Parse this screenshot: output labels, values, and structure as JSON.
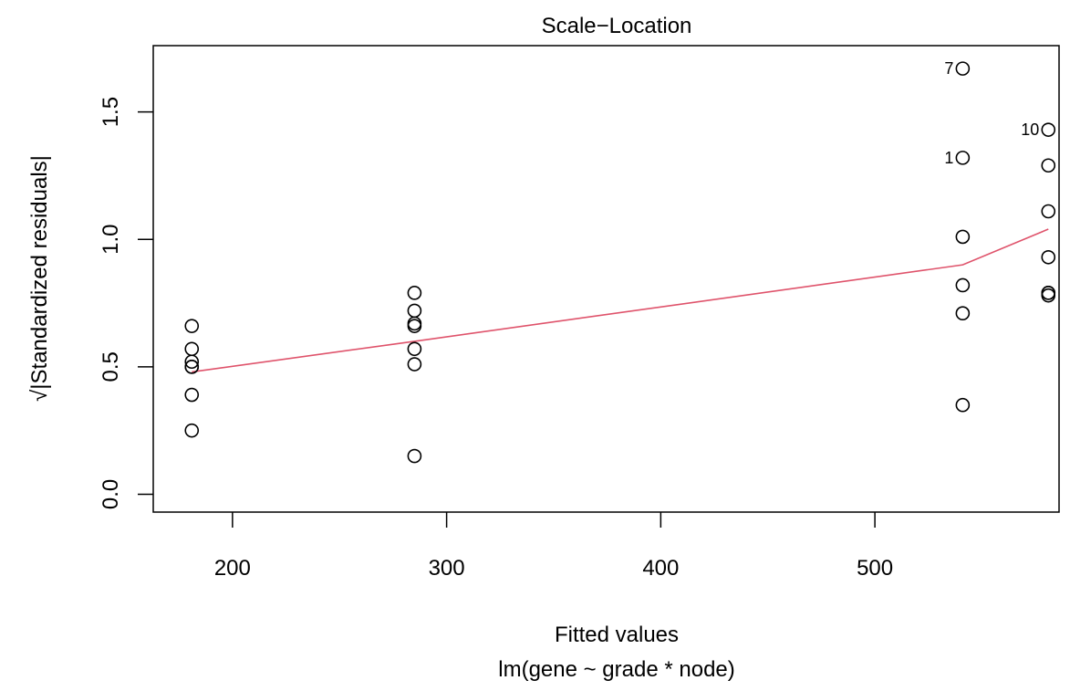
{
  "chart_data": {
    "type": "scatter",
    "title": "Scale−Location",
    "xlabel": "Fitted values",
    "subtitle": "lm(gene ~ grade * node)",
    "ylabel": "√|Standardized residuals|",
    "xlim": [
      163,
      586
    ],
    "ylim": [
      -0.07,
      1.76
    ],
    "x_ticks": [
      200,
      300,
      400,
      500
    ],
    "x_tick_labels": [
      "200",
      "300",
      "400",
      "500"
    ],
    "y_ticks": [
      0.0,
      0.5,
      1.0,
      1.5
    ],
    "y_tick_labels": [
      "0.0",
      "0.5",
      "1.0",
      "1.5"
    ],
    "grid": false,
    "series": [
      {
        "kind": "points",
        "x": [
          181,
          181,
          181,
          181,
          181,
          181,
          181,
          285,
          285,
          285,
          285,
          285,
          285,
          285,
          541,
          541,
          541,
          541,
          541,
          541,
          581,
          581,
          581,
          581,
          581,
          581,
          581
        ],
        "y": [
          0.66,
          0.57,
          0.52,
          0.5,
          0.39,
          0.25,
          0.5,
          0.79,
          0.72,
          0.67,
          0.57,
          0.51,
          0.15,
          0.66,
          1.67,
          1.32,
          1.01,
          0.82,
          0.71,
          0.35,
          1.43,
          1.29,
          1.11,
          0.93,
          0.79,
          0.78,
          0.79
        ]
      },
      {
        "kind": "smooth",
        "color": "#DF536B",
        "x": [
          181,
          285,
          541,
          581
        ],
        "y": [
          0.48,
          0.6,
          0.9,
          1.04
        ]
      }
    ],
    "annotations": [
      {
        "text": "7",
        "x": 541,
        "y": 1.67
      },
      {
        "text": "1",
        "x": 541,
        "y": 1.32
      },
      {
        "text": "10",
        "x": 581,
        "y": 1.43
      }
    ]
  }
}
